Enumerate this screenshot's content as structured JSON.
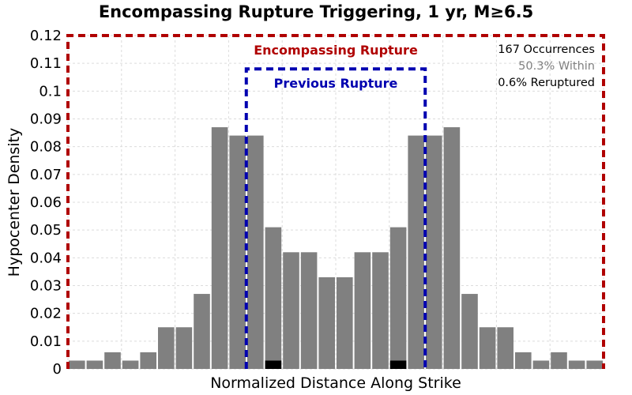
{
  "chart_data": {
    "type": "bar",
    "title": "Encompassing Rupture Triggering, 1 yr, M≥6.5",
    "xlabel": "Normalized Distance Along Strike",
    "ylabel": "Hypocenter Density",
    "xlim": [
      0,
      1
    ],
    "ylim": [
      0,
      0.12
    ],
    "yticks": [
      "0",
      "0.01",
      "0.02",
      "0.03",
      "0.04",
      "0.05",
      "0.06",
      "0.07",
      "0.08",
      "0.09",
      "0.1",
      "0.11",
      "0.12"
    ],
    "grid": true,
    "series": [
      {
        "name": "Hypocenter Density",
        "color": "#808080",
        "values": [
          0.003,
          0.003,
          0.006,
          0.003,
          0.006,
          0.015,
          0.015,
          0.027,
          0.087,
          0.084,
          0.084,
          0.051,
          0.042,
          0.042,
          0.033,
          0.033,
          0.042,
          0.042,
          0.051,
          0.084,
          0.084,
          0.087,
          0.027,
          0.015,
          0.015,
          0.006,
          0.003,
          0.006,
          0.003,
          0.003
        ]
      },
      {
        "name": "Reruptured",
        "color": "#000000",
        "values": [
          0,
          0,
          0,
          0,
          0,
          0,
          0,
          0,
          0,
          0,
          0,
          0.003,
          0,
          0,
          0,
          0,
          0,
          0,
          0.003,
          0,
          0,
          0,
          0,
          0,
          0,
          0,
          0,
          0,
          0,
          0
        ]
      }
    ],
    "regions": [
      {
        "label": "Encompassing Rupture",
        "x_start": 0.0,
        "x_end": 1.0,
        "y_top": 0.12,
        "color": "#b00000"
      },
      {
        "label": "Previous Rupture",
        "x_start": 0.333,
        "x_end": 0.667,
        "y_top": 0.108,
        "color": "#0000b0"
      }
    ],
    "stats": [
      {
        "text": "167 Occurrences",
        "color": "#000000"
      },
      {
        "text": "50.3% Within",
        "color": "#808080"
      },
      {
        "text": "0.6% Reruptured",
        "color": "#000000"
      }
    ]
  }
}
